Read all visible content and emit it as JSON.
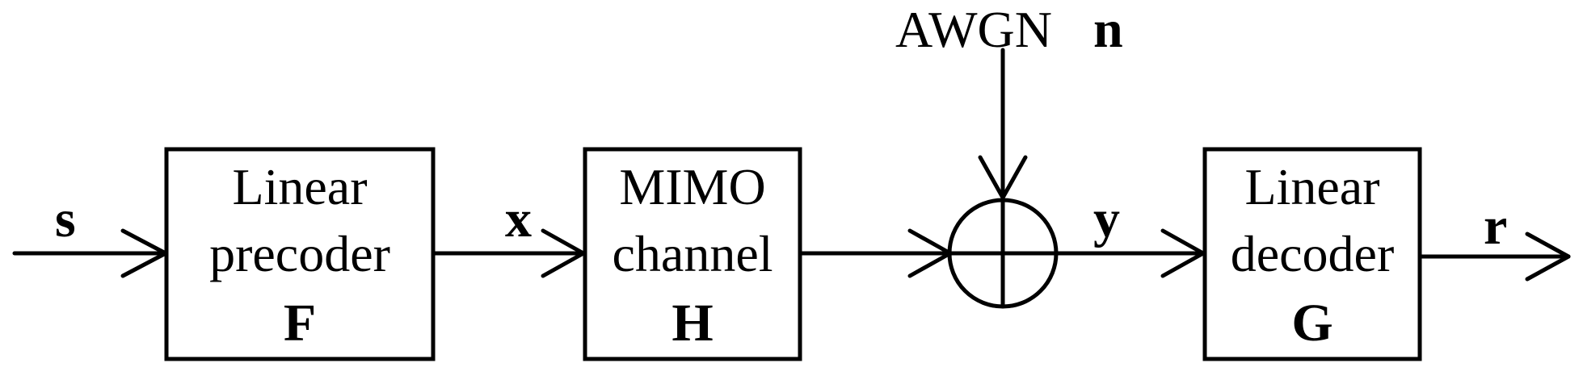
{
  "noise": {
    "label": "AWGN",
    "symbol": "n"
  },
  "signals": {
    "input": "s",
    "precoded": "x",
    "received": "y",
    "output": "r"
  },
  "blocks": [
    {
      "id": "precoder",
      "line1": "Linear",
      "line2": "precoder",
      "symbol": "F"
    },
    {
      "id": "channel",
      "line1": "MIMO",
      "line2": "channel",
      "symbol": "H"
    },
    {
      "id": "decoder",
      "line1": "Linear",
      "line2": "decoder",
      "symbol": "G"
    }
  ]
}
